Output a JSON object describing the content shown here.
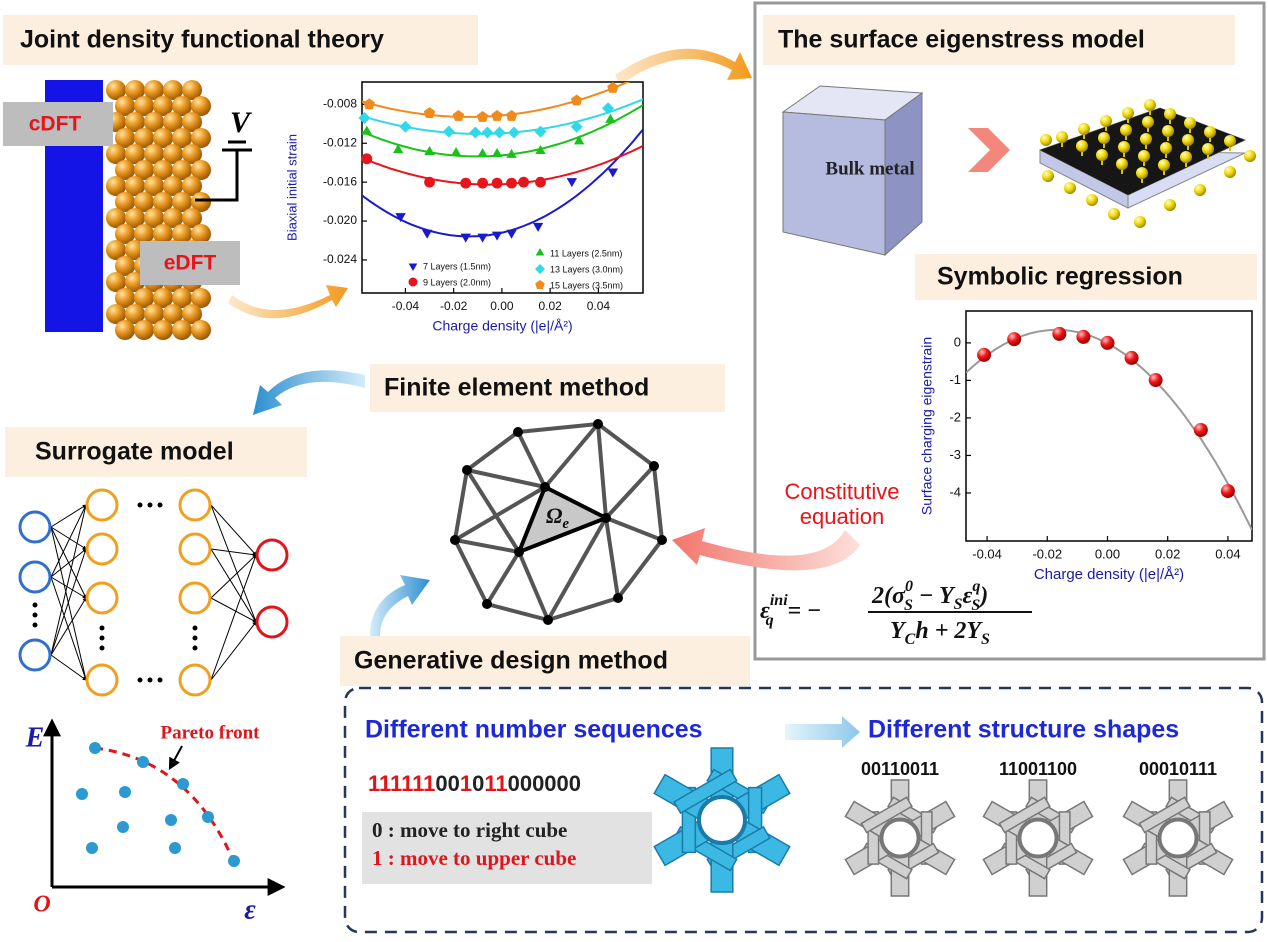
{
  "jdft": {
    "title": "Joint density functional theory",
    "cdft": "cDFT",
    "edft": "eDFT",
    "voltage": "V"
  },
  "strain_chart": {
    "type": "scatter",
    "fit": "quadratic",
    "xlabel": "Charge density (|e|/Å²)",
    "ylabel": "Biaxial initial strain",
    "xlim": [
      -0.058,
      0.0585
    ],
    "ylim": [
      -0.0274,
      -0.0057
    ],
    "xticks": [
      -0.04,
      -0.02,
      {
        "value": 0,
        "label": "0.00"
      },
      0.02,
      0.04
    ],
    "yticks": [
      -0.008,
      -0.012,
      -0.016,
      {
        "value": -0.02,
        "label": "-0.020"
      },
      -0.024
    ],
    "series": [
      {
        "name": "7 Layers (1.5nm)",
        "color": "#1a1acc",
        "marker": "triangle-down",
        "x": [
          -0.042,
          -0.031,
          -0.015,
          -0.008,
          -0.002,
          0.004,
          0.015,
          0.029,
          0.046
        ],
        "values": [
          -0.0195,
          -0.0212,
          -0.0216,
          -0.0216,
          -0.0214,
          -0.0212,
          -0.0205,
          -0.0159,
          -0.0149
        ]
      },
      {
        "name": "9 Layers (2.0nm)",
        "color": "#e8141b",
        "marker": "circle",
        "x": [
          -0.056,
          -0.03,
          -0.015,
          -0.008,
          -0.002,
          0.004,
          0.009,
          0.016
        ],
        "values": [
          -0.0136,
          -0.016,
          -0.0161,
          -0.0161,
          -0.0161,
          -0.0161,
          -0.016,
          -0.016
        ]
      },
      {
        "name": "11 Layers (2.5nm)",
        "color": "#19c219",
        "marker": "triangle-up",
        "x": [
          -0.056,
          -0.043,
          -0.03,
          -0.019,
          -0.008,
          -0.002,
          0.004,
          0.016,
          0.032,
          0.045
        ],
        "values": [
          -0.0108,
          -0.0127,
          -0.0129,
          -0.013,
          -0.0131,
          -0.0131,
          -0.0132,
          -0.0128,
          -0.0118,
          -0.0096
        ]
      },
      {
        "name": "13 Layers (3.0nm)",
        "color": "#30d8e8",
        "marker": "diamond",
        "x": [
          -0.057,
          -0.04,
          -0.022,
          -0.011,
          -0.006,
          -0.001,
          0.005,
          0.016,
          0.031,
          0.044
        ],
        "values": [
          -0.0094,
          -0.0103,
          -0.0108,
          -0.0109,
          -0.0109,
          -0.0109,
          -0.0109,
          -0.0108,
          -0.0103,
          -0.0084
        ]
      },
      {
        "name": "15 Layers (3.5nm)",
        "color": "#f08a1a",
        "marker": "pentagon",
        "x": [
          -0.055,
          -0.03,
          -0.018,
          -0.008,
          -0.002,
          0.004,
          0.031,
          0.046
        ],
        "values": [
          -0.008,
          -0.0089,
          -0.0092,
          -0.0093,
          -0.0092,
          -0.0092,
          -0.0076,
          -0.0063
        ]
      }
    ]
  },
  "surface": {
    "title": "The surface eigenstress model",
    "bulk": "Bulk metal"
  },
  "symbolic": {
    "title": "Symbolic regression"
  },
  "symbolic_chart": {
    "type": "scatter",
    "fit": "quadratic",
    "xlabel": "Charge density (|e|/Å²)",
    "ylabel": "Surface charging eigenstrain",
    "xlim": [
      -0.047,
      0.048
    ],
    "ylim": [
      -5.28,
      0.85
    ],
    "xticks": [
      -0.04,
      -0.02,
      {
        "value": 0,
        "label": "0.00"
      },
      0.02,
      0.04
    ],
    "yticks": [
      0,
      -1,
      -2,
      -3,
      -4
    ],
    "series": [
      {
        "color": "#e8141b",
        "marker": "sphere",
        "x": [
          -0.041,
          -0.031,
          -0.016,
          -0.008,
          0.0,
          0.008,
          0.016,
          0.031,
          0.04
        ],
        "values": [
          -0.32,
          0.1,
          0.24,
          0.16,
          0.0,
          -0.4,
          -0.99,
          -2.32,
          -3.95
        ]
      }
    ]
  },
  "constitutive": [
    "Constitutive",
    "equation"
  ],
  "equation": {
    "lhs": "ε",
    "lhs_sup": "ini",
    "lhs_sub": "q",
    "eq": "= −",
    "num_a": "2(σ",
    "num_a_sup": "0",
    "num_a_sub": "S",
    "num_b": " − Y",
    "num_b_sub": "S",
    "num_c": "ε",
    "num_c_sup": "q",
    "num_c_sub": "S",
    "num_d": ")",
    "den_a": "Y",
    "den_a_sub": "C",
    "den_b": "h + 2Y",
    "den_b_sub": "S"
  },
  "fem": {
    "title": "Finite element method",
    "element": "Ω",
    "element_sub": "e"
  },
  "surrogate": {
    "title": "Surrogate model"
  },
  "pareto": {
    "label": "Pareto front",
    "yaxis": "E",
    "xaxis": "ε",
    "origin": "O"
  },
  "generative": {
    "title": "Generative design method",
    "left": "Different number sequences",
    "right": "Different structure shapes",
    "sequence": [
      {
        "text": "111111",
        "color": "#e0141b"
      },
      {
        "text": "00",
        "color": "#222"
      },
      {
        "text": "1",
        "color": "#e0141b"
      },
      {
        "text": "0",
        "color": "#222"
      },
      {
        "text": "11",
        "color": "#e0141b"
      },
      {
        "text": "000000",
        "color": "#222"
      }
    ],
    "rules": [
      {
        "text": "0 : move to right cube",
        "color": "#222"
      },
      {
        "text": "1 : move to upper cube",
        "color": "#e0141b"
      }
    ],
    "shapes": [
      "00110011",
      "11001100",
      "00010111"
    ]
  }
}
